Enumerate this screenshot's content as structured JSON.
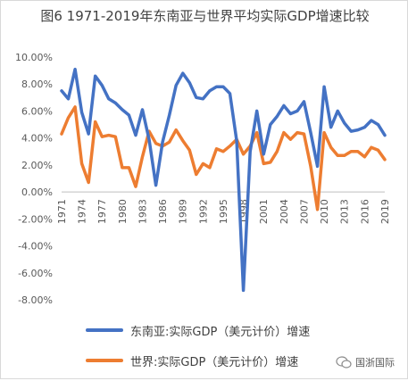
{
  "title": "图6 1971-2019年东南亚与世界平均实际GDP增速比较",
  "watermark": "国浙国际",
  "chart_data": {
    "type": "line",
    "title": "图6 1971-2019年东南亚与世界平均实际GDP增速比较",
    "xlabel": "",
    "ylabel": "",
    "ylim": [
      -8,
      10
    ],
    "y_tick_labels": [
      "10.00%",
      "8.00%",
      "6.00%",
      "4.00%",
      "2.00%",
      "0.00%",
      "-2.00%",
      "-4.00%",
      "-6.00%",
      "-8.00%"
    ],
    "x_tick_labels": [
      "1971",
      "1974",
      "1977",
      "1980",
      "1983",
      "1986",
      "1989",
      "1992",
      "1995",
      "1998",
      "2001",
      "2004",
      "2007",
      "2010",
      "2013",
      "2016",
      "2019"
    ],
    "legend_position": "bottom",
    "grid": false,
    "x": [
      1971,
      1972,
      1973,
      1974,
      1975,
      1976,
      1977,
      1978,
      1979,
      1980,
      1981,
      1982,
      1983,
      1984,
      1985,
      1986,
      1987,
      1988,
      1989,
      1990,
      1991,
      1992,
      1993,
      1994,
      1995,
      1996,
      1997,
      1998,
      1999,
      2000,
      2001,
      2002,
      2003,
      2004,
      2005,
      2006,
      2007,
      2008,
      2009,
      2010,
      2011,
      2012,
      2013,
      2014,
      2015,
      2016,
      2017,
      2018,
      2019
    ],
    "series": [
      {
        "name": "东南亚:实际GDP（美元计价）增速",
        "color": "#4472C4",
        "values": [
          7.5,
          6.9,
          9.1,
          5.9,
          4.3,
          8.6,
          7.9,
          6.9,
          6.6,
          6.1,
          5.7,
          4.2,
          6.1,
          3.9,
          0.5,
          3.7,
          5.7,
          7.9,
          8.8,
          8.1,
          7.0,
          6.9,
          7.5,
          7.8,
          7.8,
          7.3,
          3.8,
          -7.3,
          3.0,
          6.0,
          2.8,
          5.0,
          5.6,
          6.4,
          5.8,
          6.0,
          6.7,
          4.4,
          1.9,
          7.8,
          4.8,
          6.0,
          5.1,
          4.5,
          4.6,
          4.8,
          5.3,
          5.0,
          4.2
        ]
      },
      {
        "name": "世界:实际GDP（美元计价）增速",
        "color": "#ED7D31",
        "values": [
          4.3,
          5.5,
          6.3,
          2.1,
          0.7,
          5.2,
          4.1,
          4.2,
          4.1,
          1.8,
          1.8,
          0.4,
          2.6,
          4.5,
          3.6,
          3.4,
          3.7,
          4.6,
          3.8,
          3.1,
          1.3,
          2.1,
          1.8,
          3.2,
          3.0,
          3.4,
          3.9,
          2.8,
          3.4,
          4.4,
          2.1,
          2.2,
          3.0,
          4.4,
          3.9,
          4.4,
          4.3,
          1.9,
          -1.3,
          4.4,
          3.3,
          2.7,
          2.7,
          3.0,
          3.0,
          2.6,
          3.3,
          3.1,
          2.4
        ]
      }
    ]
  }
}
